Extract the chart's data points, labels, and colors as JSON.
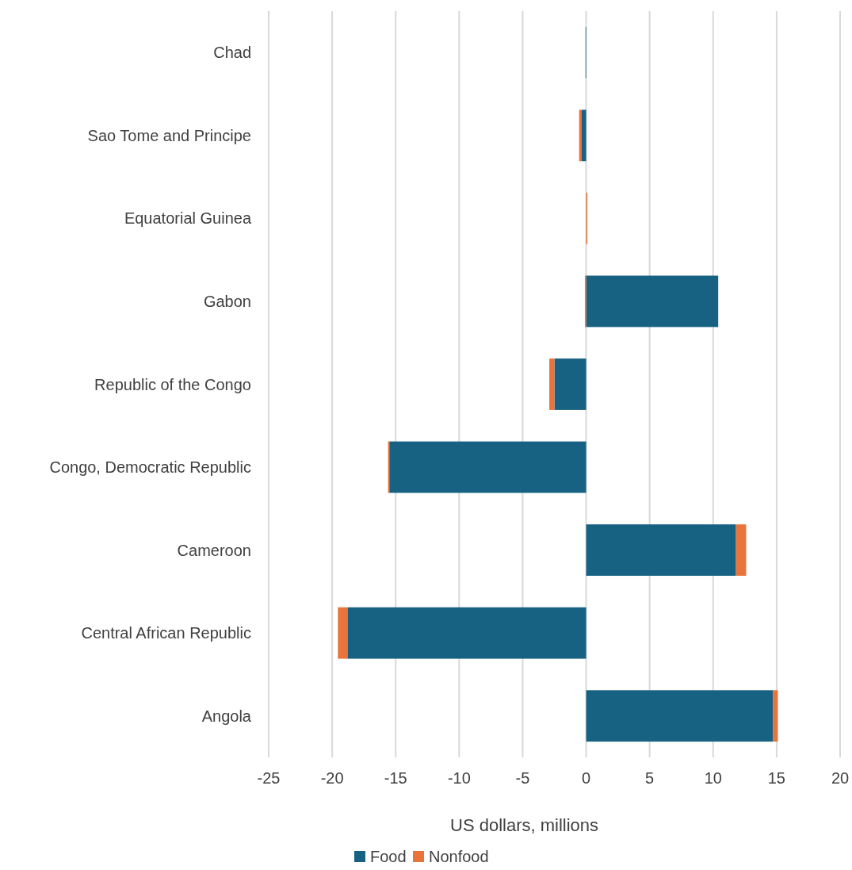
{
  "chart_data": {
    "type": "bar",
    "orientation": "horizontal",
    "stacked": true,
    "categories": [
      "Chad",
      "Sao Tome and Principe",
      "Equatorial Guinea",
      "Gabon",
      "Republic of the Congo",
      "Congo, Democratic Republic",
      "Cameroon",
      "Central African Republic",
      "Angola"
    ],
    "series": [
      {
        "name": "Food",
        "color": "#176283",
        "values": [
          -0.05,
          -0.35,
          0,
          10.4,
          -2.5,
          -15.5,
          11.8,
          -18.8,
          14.7
        ]
      },
      {
        "name": "Nonfood",
        "color": "#e8743b",
        "values": [
          0,
          -0.2,
          0.1,
          -0.1,
          -0.4,
          -0.1,
          0.8,
          -0.75,
          0.4
        ]
      }
    ],
    "xlim": [
      -25,
      20
    ],
    "xticks": [
      -25,
      -20,
      -15,
      -10,
      -5,
      0,
      5,
      10,
      15,
      20
    ],
    "xlabel": "US dollars, millions",
    "grid": "x",
    "legend": "bottom"
  }
}
